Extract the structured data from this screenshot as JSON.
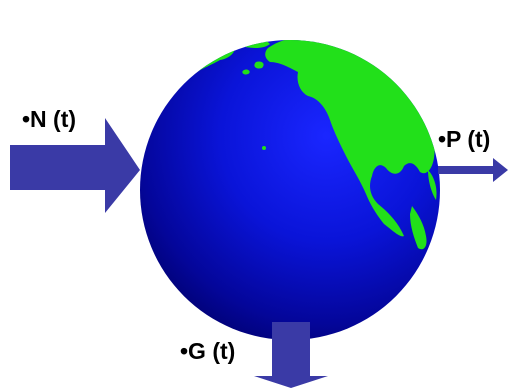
{
  "labels": {
    "n": "•N (t)",
    "p": "•P (t)",
    "g": "•G (t)"
  },
  "colors": {
    "ocean": "#0a14d8",
    "ocean_dark": "#00006a",
    "land": "#22e01a",
    "arrow": "#3a3aa6",
    "text": "#000000"
  },
  "icons": {
    "globe": "earth-globe-icon",
    "arrow_in": "arrow-right-icon",
    "arrow_out": "arrow-right-icon",
    "arrow_down": "arrow-down-icon"
  }
}
